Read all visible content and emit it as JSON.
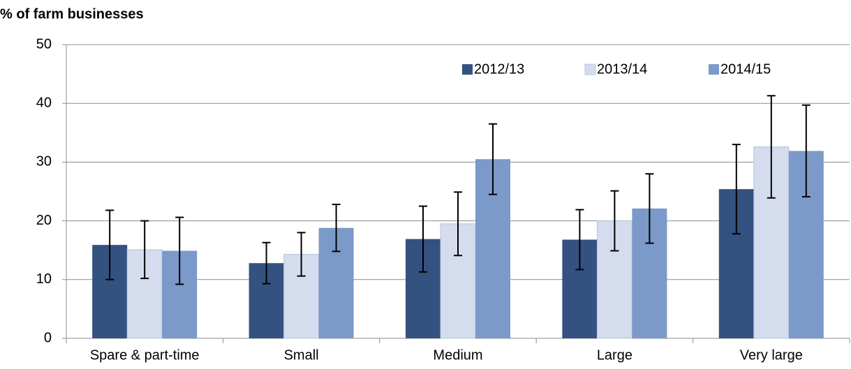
{
  "chart_data": {
    "type": "bar",
    "y_label": "% of farm businesses",
    "categories": [
      "Spare & part-time",
      "Small",
      "Medium",
      "Large",
      "Very large"
    ],
    "series": [
      {
        "name": "2012/13",
        "color": "#34527f",
        "values": [
          15.9,
          12.8,
          16.9,
          16.8,
          25.4
        ],
        "errors": [
          5.9,
          3.5,
          5.6,
          5.1,
          7.6
        ]
      },
      {
        "name": "2013/14",
        "color": "#d4dced",
        "values": [
          15.1,
          14.3,
          19.5,
          20.0,
          32.6
        ],
        "errors": [
          4.9,
          3.7,
          5.4,
          5.1,
          8.7
        ]
      },
      {
        "name": "2014/15",
        "color": "#7b9ac9",
        "values": [
          14.9,
          18.8,
          30.5,
          22.1,
          31.9
        ],
        "errors": [
          5.7,
          4.0,
          6.0,
          5.9,
          7.8
        ]
      }
    ],
    "ylim": [
      0,
      50
    ],
    "yticks": [
      0,
      10,
      20,
      30,
      40,
      50
    ],
    "grid": true,
    "legend": "top-right"
  }
}
